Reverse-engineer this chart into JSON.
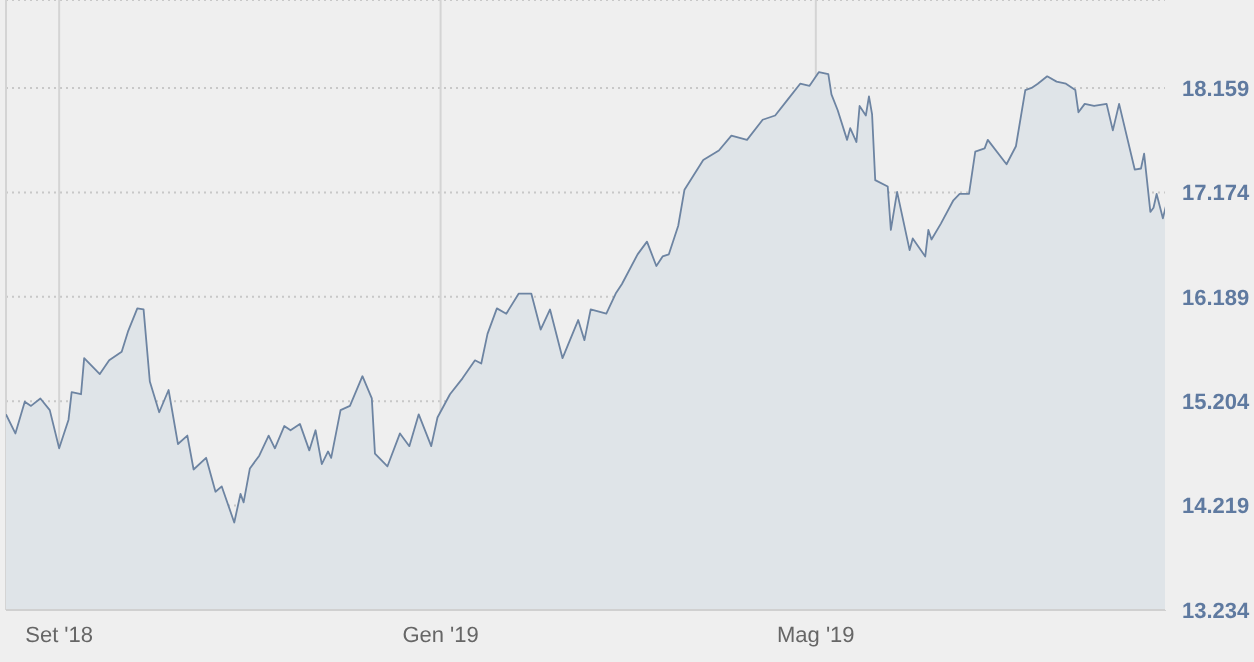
{
  "chart_data": {
    "type": "area",
    "x": [
      "2018-08-15",
      "2018-08-18",
      "2018-08-21",
      "2018-08-23",
      "2018-08-26",
      "2018-08-29",
      "2018-09-01",
      "2018-09-04",
      "2018-09-05",
      "2018-09-08",
      "2018-09-09",
      "2018-09-14",
      "2018-09-17",
      "2018-09-21",
      "2018-09-23",
      "2018-09-26",
      "2018-09-28",
      "2018-09-30",
      "2018-10-03",
      "2018-10-06",
      "2018-10-09",
      "2018-10-12",
      "2018-10-14",
      "2018-10-18",
      "2018-10-21",
      "2018-10-23",
      "2018-10-27",
      "2018-10-29",
      "2018-10-30",
      "2018-11-01",
      "2018-11-04",
      "2018-11-07",
      "2018-11-09",
      "2018-11-12",
      "2018-11-14",
      "2018-11-17",
      "2018-11-20",
      "2018-11-22",
      "2018-11-24",
      "2018-11-26",
      "2018-11-27",
      "2018-11-30",
      "2018-12-03",
      "2018-12-07",
      "2018-12-10",
      "2018-12-11",
      "2018-12-15",
      "2018-12-19",
      "2018-12-22",
      "2018-12-25",
      "2018-12-29",
      "2018-12-31",
      "2019-01-04",
      "2019-01-08",
      "2019-01-12",
      "2019-01-14",
      "2019-01-16",
      "2019-01-19",
      "2019-01-22",
      "2019-01-26",
      "2019-01-30",
      "2019-02-02",
      "2019-02-05",
      "2019-02-09",
      "2019-02-14",
      "2019-02-16",
      "2019-02-18",
      "2019-02-23",
      "2019-02-26",
      "2019-02-28",
      "2019-03-05",
      "2019-03-08",
      "2019-03-11",
      "2019-03-13",
      "2019-03-15",
      "2019-03-18",
      "2019-03-20",
      "2019-03-26",
      "2019-03-31",
      "2019-04-04",
      "2019-04-09",
      "2019-04-14",
      "2019-04-18",
      "2019-04-22",
      "2019-04-26",
      "2019-04-29",
      "2019-05-02",
      "2019-05-05",
      "2019-05-06",
      "2019-05-08",
      "2019-05-11",
      "2019-05-12",
      "2019-05-14",
      "2019-05-15",
      "2019-05-17",
      "2019-05-18",
      "2019-05-19",
      "2019-05-20",
      "2019-05-24",
      "2019-05-25",
      "2019-05-27",
      "2019-05-31",
      "2019-06-01",
      "2019-06-05",
      "2019-06-06",
      "2019-06-07",
      "2019-06-10",
      "2019-06-14",
      "2019-06-16",
      "2019-06-19",
      "2019-06-21",
      "2019-06-24",
      "2019-06-25",
      "2019-07-01",
      "2019-07-04",
      "2019-07-07",
      "2019-07-09",
      "2019-07-11",
      "2019-07-14",
      "2019-07-17",
      "2019-07-20",
      "2019-07-23",
      "2019-07-24",
      "2019-07-26",
      "2019-07-29",
      "2019-08-02",
      "2019-08-04",
      "2019-08-06",
      "2019-08-11",
      "2019-08-13",
      "2019-08-14",
      "2019-08-16",
      "2019-08-17",
      "2019-08-18",
      "2019-08-20",
      "2019-08-21"
    ],
    "series": [
      {
        "color": "#6d84a2",
        "values": [
          15.08,
          14.9,
          15.2,
          15.16,
          15.23,
          15.12,
          14.76,
          15.03,
          15.29,
          15.27,
          15.61,
          15.46,
          15.59,
          15.67,
          15.86,
          16.08,
          16.07,
          15.39,
          15.1,
          15.31,
          14.8,
          14.88,
          14.56,
          14.67,
          14.35,
          14.4,
          14.06,
          14.33,
          14.25,
          14.57,
          14.69,
          14.88,
          14.76,
          14.97,
          14.93,
          14.99,
          14.74,
          14.93,
          14.61,
          14.73,
          14.67,
          15.12,
          15.16,
          15.44,
          15.23,
          14.71,
          14.59,
          14.9,
          14.78,
          15.08,
          14.78,
          15.05,
          15.27,
          15.42,
          15.59,
          15.56,
          15.84,
          16.08,
          16.03,
          16.22,
          16.22,
          15.88,
          16.07,
          15.61,
          15.97,
          15.78,
          16.07,
          16.03,
          16.22,
          16.31,
          16.59,
          16.71,
          16.48,
          16.57,
          16.59,
          16.86,
          17.2,
          17.48,
          17.57,
          17.71,
          17.67,
          17.86,
          17.9,
          18.05,
          18.2,
          18.18,
          18.31,
          18.29,
          18.1,
          17.95,
          17.67,
          17.78,
          17.65,
          17.99,
          17.9,
          18.08,
          17.91,
          17.29,
          17.23,
          16.82,
          17.18,
          16.63,
          16.74,
          16.57,
          16.82,
          16.73,
          16.88,
          17.1,
          17.16,
          17.16,
          17.56,
          17.59,
          17.67,
          17.44,
          17.61,
          18.14,
          18.16,
          18.2,
          18.27,
          18.22,
          18.2,
          18.14,
          17.93,
          18.01,
          17.99,
          18.01,
          17.76,
          18.01,
          17.39,
          17.4,
          17.54,
          16.99,
          17.03,
          17.16,
          16.93,
          17.05
        ]
      }
    ],
    "xlim": [
      "2018-08-15",
      "2019-08-21"
    ],
    "xticks": [
      {
        "value": "2018-09-01",
        "label": "Set '18"
      },
      {
        "value": "2019-01-01",
        "label": "Gen '19"
      },
      {
        "value": "2019-05-01",
        "label": "Mag '19"
      }
    ],
    "ylim": [
      13.234,
      18.99
    ],
    "yticks": [
      13.234,
      14.219,
      15.204,
      16.189,
      17.174,
      18.159
    ],
    "grid": true
  }
}
